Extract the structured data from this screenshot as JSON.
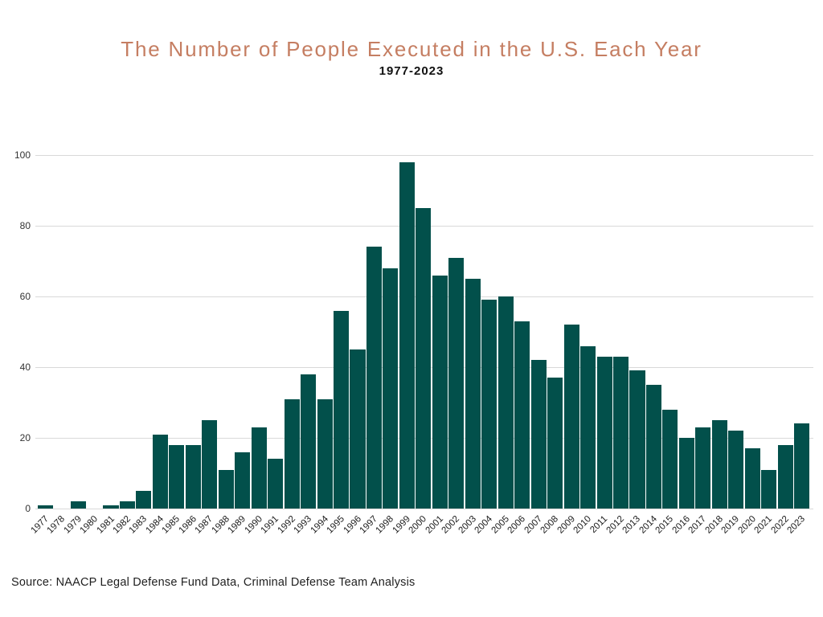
{
  "header": {
    "title": "The Number of People Executed in the U.S. Each Year",
    "subtitle": "1977-2023"
  },
  "footer": {
    "source": "Source: NAACP Legal Defense Fund Data, Criminal Defense Team Analysis"
  },
  "colors": {
    "title_text": "#c57e62",
    "subtitle_text": "#111111",
    "bar_fill": "#02504b",
    "gridline": "#d9d9d9",
    "axis_label": "#333333",
    "background": "#ffffff"
  },
  "chart_data": {
    "type": "bar",
    "title": "The Number of People Executed in the U.S. Each Year",
    "subtitle": "1977-2023",
    "categories": [
      "1977",
      "1978",
      "1979",
      "1980",
      "1981",
      "1982",
      "1983",
      "1984",
      "1985",
      "1986",
      "1987",
      "1988",
      "1989",
      "1990",
      "1991",
      "1992",
      "1993",
      "1994",
      "1995",
      "1996",
      "1997",
      "1998",
      "1999",
      "2000",
      "2001",
      "2002",
      "2003",
      "2004",
      "2005",
      "2006",
      "2007",
      "2008",
      "2009",
      "2010",
      "2011",
      "2012",
      "2013",
      "2014",
      "2015",
      "2016",
      "2017",
      "2018",
      "2019",
      "2020",
      "2021",
      "2022",
      "2023"
    ],
    "values": [
      1,
      0,
      2,
      0,
      1,
      2,
      5,
      21,
      18,
      18,
      25,
      11,
      16,
      23,
      14,
      31,
      38,
      31,
      56,
      45,
      74,
      68,
      98,
      85,
      66,
      71,
      65,
      59,
      60,
      53,
      42,
      37,
      52,
      46,
      43,
      43,
      39,
      35,
      28,
      20,
      23,
      25,
      22,
      17,
      11,
      18,
      24
    ],
    "xlabel": "",
    "ylabel": "",
    "ylim": [
      0,
      100
    ],
    "yticks": [
      0,
      20,
      40,
      60,
      80,
      100
    ],
    "grid": true,
    "legend": "none",
    "bar_color": "#02504b",
    "annotation": "Source: NAACP Legal Defense Fund Data, Criminal Defense Team Analysis"
  }
}
